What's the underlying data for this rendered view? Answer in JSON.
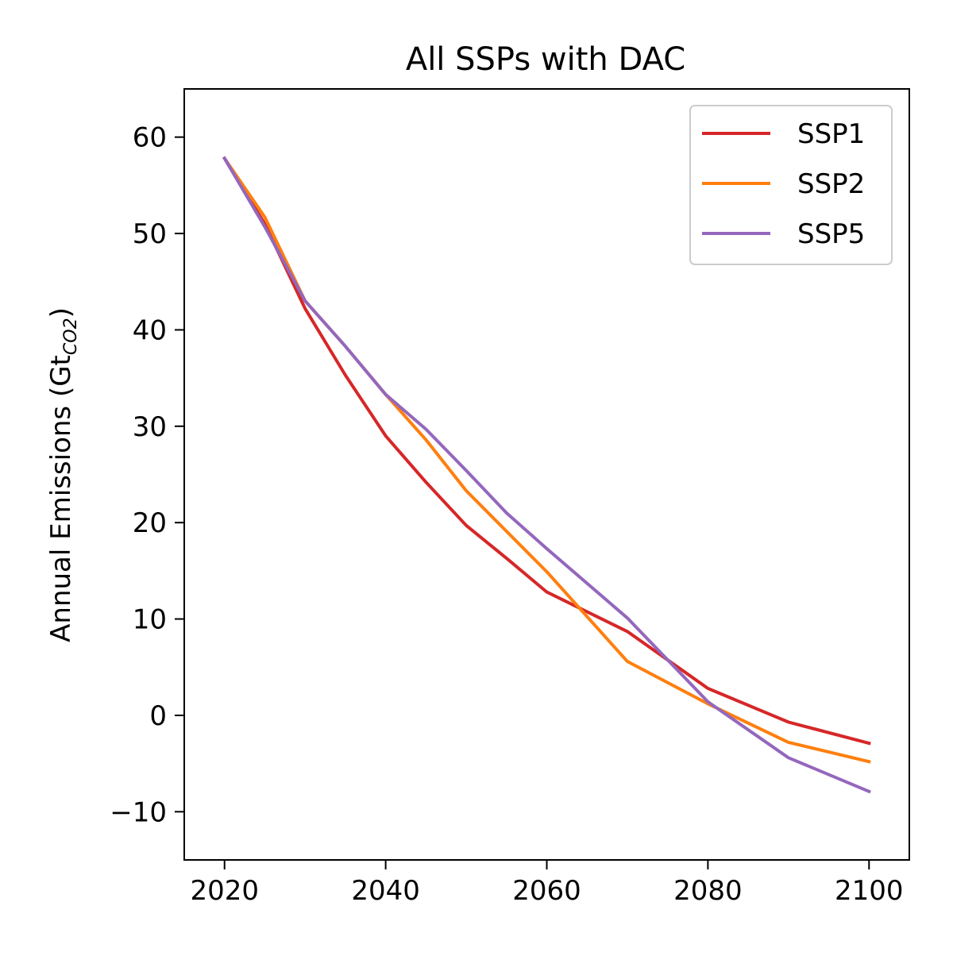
{
  "chart_data": {
    "type": "line",
    "title": "All SSPs with DAC",
    "xlabel": "",
    "ylabel": {
      "main": "Annual Emissions (Gt",
      "subscript": "CO2",
      "close": ")"
    },
    "xlim": [
      2015,
      2105
    ],
    "ylim": [
      -15,
      65
    ],
    "xticks": [
      2020,
      2040,
      2060,
      2080,
      2100
    ],
    "yticks": [
      -10,
      0,
      10,
      20,
      30,
      40,
      50,
      60
    ],
    "xtick_labels": [
      "2020",
      "2040",
      "2060",
      "2080",
      "2100"
    ],
    "ytick_labels": [
      "−10",
      "0",
      "10",
      "20",
      "30",
      "40",
      "50",
      "60"
    ],
    "grid": false,
    "legend_position": "top-right",
    "series": [
      {
        "name": "SSP1",
        "color": "#d62728",
        "x": [
          2020,
          2025,
          2030,
          2035,
          2040,
          2045,
          2050,
          2055,
          2060,
          2070,
          2080,
          2090,
          2100
        ],
        "y": [
          57.8,
          51.0,
          42.2,
          35.3,
          29.0,
          24.2,
          19.7,
          16.3,
          12.8,
          8.7,
          2.8,
          -0.7,
          -2.9
        ]
      },
      {
        "name": "SSP2",
        "color": "#ff7f0e",
        "x": [
          2020,
          2025,
          2030,
          2035,
          2040,
          2045,
          2050,
          2055,
          2060,
          2070,
          2080,
          2090,
          2100
        ],
        "y": [
          57.8,
          51.7,
          43.0,
          38.3,
          33.3,
          28.6,
          23.3,
          19.1,
          14.9,
          5.6,
          1.2,
          -2.8,
          -4.8
        ]
      },
      {
        "name": "SSP5",
        "color": "#9467bd",
        "x": [
          2020,
          2025,
          2030,
          2035,
          2040,
          2045,
          2050,
          2055,
          2060,
          2070,
          2080,
          2090,
          2100
        ],
        "y": [
          57.8,
          50.7,
          43.0,
          38.3,
          33.3,
          29.7,
          25.4,
          21.0,
          17.3,
          10.1,
          1.4,
          -4.4,
          -7.9
        ]
      }
    ]
  }
}
